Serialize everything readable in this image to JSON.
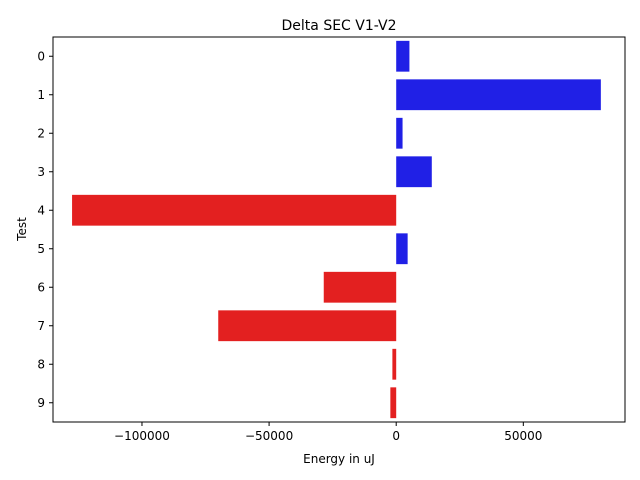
{
  "chart_data": {
    "type": "bar",
    "orientation": "horizontal",
    "title": "Delta SEC V1-V2",
    "xlabel": "Energy in uJ",
    "ylabel": "Test",
    "categories": [
      "0",
      "1",
      "2",
      "3",
      "4",
      "5",
      "6",
      "7",
      "8",
      "9"
    ],
    "values": [
      5200,
      80500,
      2500,
      14000,
      -127500,
      4500,
      -28500,
      -70000,
      -1500,
      -2300
    ],
    "xlim": [
      -135000,
      90000
    ],
    "xticks": [
      -100000,
      -50000,
      0,
      50000
    ],
    "xtick_labels": [
      "−100000",
      "−50000",
      "0",
      "50000"
    ],
    "grid": false,
    "legend": "none",
    "colors": {
      "positive": "#2020e6",
      "negative": "#e32020"
    }
  }
}
